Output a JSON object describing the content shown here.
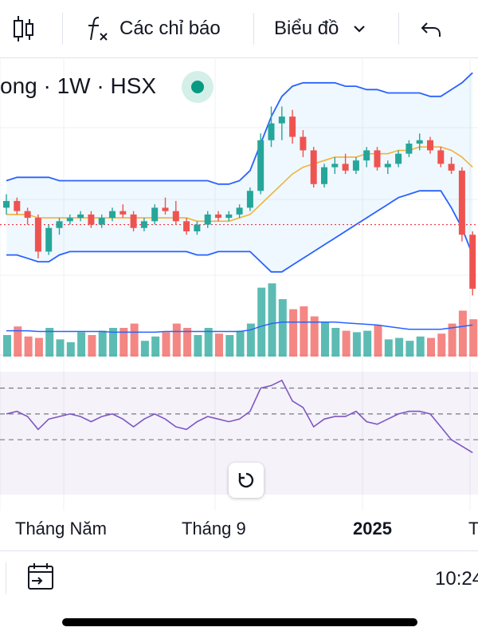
{
  "toolbar": {
    "candles_icon": "candlestick-icon",
    "indicators_label": "Các chỉ báo",
    "chart_label": "Biểu đồ",
    "undo_icon": "undo-icon"
  },
  "symbol": {
    "text": "ong · 1W · HSX",
    "status_color": "#089981"
  },
  "colors": {
    "up": "#26a69a",
    "down": "#ef5350",
    "bb": "#2962ff",
    "basis": "#f0b33a",
    "rsi": "#7e57c2"
  },
  "x_axis": {
    "labels": [
      "Tháng Năm",
      "Tháng 9",
      "2025",
      "T"
    ]
  },
  "bottom": {
    "calendar_icon": "calendar-icon",
    "time": "10:24"
  },
  "chart_data": {
    "type": "candlestick",
    "timeframe": "1W",
    "exchange": "HSX",
    "note": "Price, volume and RSI values are relative; price axis not visible in screenshot.",
    "candles": [
      [
        1.0,
        1.04,
        0.98,
        1.02
      ],
      [
        1.02,
        1.03,
        0.98,
        0.99
      ],
      [
        0.99,
        1.0,
        0.95,
        0.97
      ],
      [
        0.97,
        0.98,
        0.85,
        0.87
      ],
      [
        0.87,
        0.95,
        0.86,
        0.94
      ],
      [
        0.94,
        0.97,
        0.92,
        0.96
      ],
      [
        0.96,
        0.98,
        0.95,
        0.97
      ],
      [
        0.97,
        0.99,
        0.96,
        0.98
      ],
      [
        0.98,
        0.99,
        0.94,
        0.95
      ],
      [
        0.95,
        0.98,
        0.94,
        0.97
      ],
      [
        0.97,
        1.0,
        0.96,
        0.99
      ],
      [
        0.99,
        1.01,
        0.97,
        0.98
      ],
      [
        0.98,
        0.99,
        0.93,
        0.94
      ],
      [
        0.94,
        0.97,
        0.93,
        0.96
      ],
      [
        0.96,
        1.01,
        0.95,
        1.0
      ],
      [
        1.0,
        1.03,
        0.98,
        0.99
      ],
      [
        0.99,
        1.02,
        0.95,
        0.96
      ],
      [
        0.96,
        0.97,
        0.92,
        0.93
      ],
      [
        0.93,
        0.96,
        0.92,
        0.95
      ],
      [
        0.95,
        0.99,
        0.94,
        0.98
      ],
      [
        0.98,
        0.99,
        0.96,
        0.97
      ],
      [
        0.97,
        0.99,
        0.96,
        0.98
      ],
      [
        0.98,
        1.01,
        0.97,
        1.0
      ],
      [
        1.0,
        1.06,
        0.99,
        1.05
      ],
      [
        1.05,
        1.22,
        1.04,
        1.2
      ],
      [
        1.2,
        1.3,
        1.18,
        1.25
      ],
      [
        1.25,
        1.3,
        1.2,
        1.27
      ],
      [
        1.27,
        1.29,
        1.19,
        1.21
      ],
      [
        1.21,
        1.23,
        1.15,
        1.17
      ],
      [
        1.17,
        1.18,
        1.06,
        1.07
      ],
      [
        1.07,
        1.13,
        1.06,
        1.12
      ],
      [
        1.12,
        1.15,
        1.1,
        1.13
      ],
      [
        1.13,
        1.16,
        1.1,
        1.11
      ],
      [
        1.11,
        1.15,
        1.1,
        1.14
      ],
      [
        1.14,
        1.18,
        1.12,
        1.17
      ],
      [
        1.17,
        1.18,
        1.11,
        1.12
      ],
      [
        1.12,
        1.14,
        1.1,
        1.13
      ],
      [
        1.13,
        1.17,
        1.12,
        1.16
      ],
      [
        1.16,
        1.2,
        1.15,
        1.19
      ],
      [
        1.19,
        1.22,
        1.17,
        1.2
      ],
      [
        1.2,
        1.21,
        1.16,
        1.17
      ],
      [
        1.17,
        1.18,
        1.12,
        1.13
      ],
      [
        1.13,
        1.15,
        1.1,
        1.11
      ],
      [
        1.11,
        1.12,
        0.9,
        0.92
      ],
      [
        0.92,
        0.93,
        0.74,
        0.76
      ]
    ],
    "bollinger": {
      "upper": [
        1.08,
        1.09,
        1.09,
        1.09,
        1.09,
        1.08,
        1.08,
        1.08,
        1.08,
        1.08,
        1.08,
        1.08,
        1.08,
        1.08,
        1.08,
        1.08,
        1.08,
        1.08,
        1.08,
        1.08,
        1.07,
        1.07,
        1.08,
        1.11,
        1.19,
        1.27,
        1.33,
        1.36,
        1.37,
        1.37,
        1.37,
        1.37,
        1.36,
        1.36,
        1.35,
        1.35,
        1.34,
        1.34,
        1.34,
        1.34,
        1.33,
        1.33,
        1.35,
        1.37,
        1.4
      ],
      "basis": [
        0.98,
        0.98,
        0.98,
        0.97,
        0.97,
        0.97,
        0.97,
        0.97,
        0.97,
        0.97,
        0.97,
        0.97,
        0.97,
        0.97,
        0.97,
        0.97,
        0.97,
        0.97,
        0.96,
        0.96,
        0.96,
        0.96,
        0.97,
        0.98,
        1.01,
        1.04,
        1.07,
        1.1,
        1.12,
        1.13,
        1.14,
        1.15,
        1.15,
        1.15,
        1.16,
        1.16,
        1.16,
        1.17,
        1.17,
        1.18,
        1.18,
        1.18,
        1.17,
        1.15,
        1.12
      ],
      "lower": [
        0.86,
        0.86,
        0.85,
        0.84,
        0.84,
        0.86,
        0.87,
        0.87,
        0.87,
        0.87,
        0.87,
        0.87,
        0.87,
        0.87,
        0.87,
        0.87,
        0.87,
        0.87,
        0.86,
        0.86,
        0.87,
        0.87,
        0.87,
        0.87,
        0.84,
        0.81,
        0.81,
        0.83,
        0.85,
        0.87,
        0.89,
        0.91,
        0.93,
        0.95,
        0.97,
        0.99,
        1.01,
        1.03,
        1.04,
        1.05,
        1.05,
        1.05,
        1.0,
        0.94,
        0.86
      ]
    },
    "reference_price": 0.95,
    "volume": [
      30,
      42,
      28,
      26,
      40,
      24,
      20,
      34,
      30,
      36,
      40,
      40,
      46,
      22,
      28,
      34,
      46,
      40,
      30,
      40,
      32,
      30,
      36,
      46,
      96,
      102,
      80,
      66,
      70,
      56,
      48,
      40,
      36,
      34,
      36,
      44,
      24,
      26,
      22,
      28,
      26,
      32,
      46,
      64,
      52
    ],
    "volume_ma": [
      36,
      36,
      36,
      35,
      35,
      35,
      35,
      35,
      35,
      35,
      34,
      34,
      34,
      34,
      34,
      35,
      35,
      35,
      35,
      35,
      35,
      35,
      35,
      37,
      42,
      46,
      48,
      48,
      48,
      48,
      48,
      48,
      47,
      46,
      45,
      44,
      42,
      40,
      38,
      38,
      38,
      38,
      40,
      42,
      44
    ],
    "rsi": [
      50,
      52,
      48,
      38,
      46,
      48,
      50,
      48,
      44,
      48,
      50,
      46,
      40,
      46,
      50,
      46,
      40,
      38,
      44,
      48,
      46,
      44,
      46,
      52,
      70,
      72,
      76,
      60,
      55,
      40,
      46,
      48,
      48,
      52,
      44,
      42,
      46,
      50,
      52,
      52,
      50,
      40,
      30,
      25,
      20
    ],
    "rsi_levels": [
      70,
      50,
      30
    ]
  }
}
